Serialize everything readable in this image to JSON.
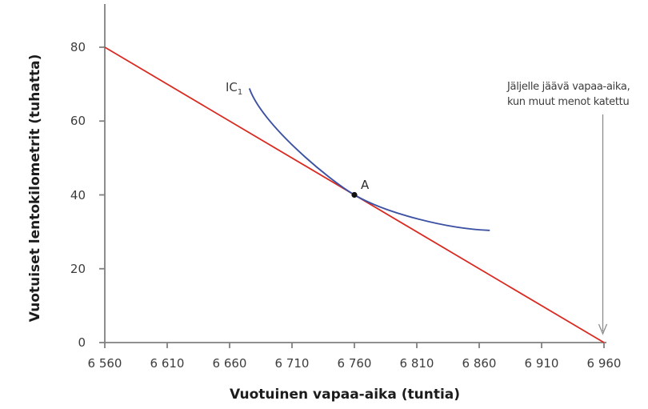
{
  "chart_data": {
    "type": "line",
    "title": "",
    "xlabel": "Vuotuinen vapaa-aika (tuntia)",
    "ylabel": "Vuotuiset lentokilometrit (tuhatta)",
    "xlim": [
      6560,
      6960
    ],
    "ylim": [
      0,
      80
    ],
    "x_tick_values": [
      6560,
      6610,
      6660,
      6710,
      6760,
      6810,
      6860,
      6910,
      6960
    ],
    "x_ticks": [
      "6 560",
      "6 610",
      "6 660",
      "6 710",
      "6 760",
      "6 810",
      "6 860",
      "6 910",
      "6 960"
    ],
    "y_ticks": [
      0,
      20,
      40,
      60,
      80
    ],
    "grid": false,
    "legend": "none",
    "axis_color": "#808080",
    "series": [
      {
        "name": "budget-line",
        "type": "straight-line",
        "color": "#d92a21",
        "points": [
          [
            6560,
            80
          ],
          [
            6960,
            0
          ]
        ]
      },
      {
        "name": "indifference-curve",
        "type": "curve",
        "color": "#3c51a3",
        "label": "IC",
        "label_sub": "1",
        "bezier": [
          [
            6676,
            68.7
          ],
          [
            6686,
            59.2
          ],
          [
            6738,
            44.4
          ],
          [
            6760,
            40
          ],
          [
            6786,
            34.9
          ],
          [
            6835,
            30.8
          ],
          [
            6868,
            30.4
          ]
        ]
      }
    ],
    "point": {
      "label": "A",
      "x": 6760,
      "y": 40,
      "color": "#111111"
    },
    "annotation": {
      "line1": "Jäljelle jäävä vapaa-aika,",
      "line2": "kun muut menot katettu",
      "arrow_x": 6960,
      "text_color": "#3d3d3d",
      "arrow_color": "#8c8c8c"
    }
  }
}
